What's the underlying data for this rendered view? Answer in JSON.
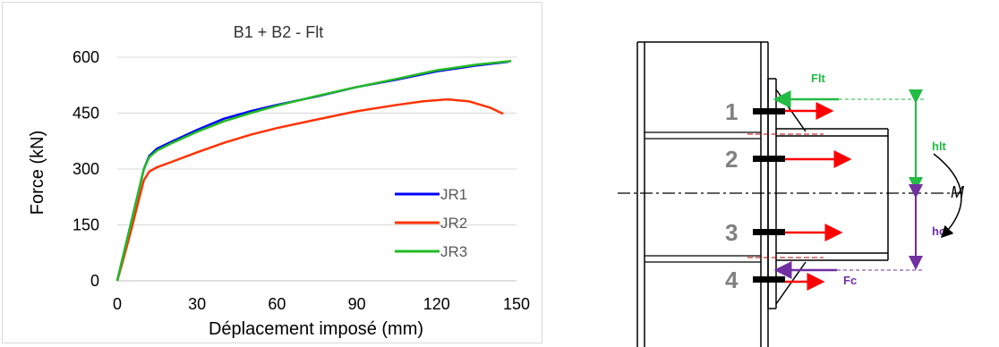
{
  "chart_data": {
    "type": "line",
    "title": "B1 + B2 - Flt",
    "xlabel": "Déplacement imposé (mm)",
    "ylabel": "Force (kN)",
    "xlim": [
      0,
      150
    ],
    "ylim": [
      0,
      600
    ],
    "xticks": [
      "0",
      "30",
      "60",
      "90",
      "120",
      "150"
    ],
    "yticks": [
      "0",
      "150",
      "300",
      "450",
      "600"
    ],
    "grid": "horizontal",
    "legend_position": "bottom-right",
    "series": [
      {
        "name": "JR1",
        "color": "#0000ff",
        "points": [
          [
            0,
            0
          ],
          [
            2,
            60
          ],
          [
            5,
            150
          ],
          [
            8,
            240
          ],
          [
            10,
            300
          ],
          [
            12,
            335
          ],
          [
            15,
            355
          ],
          [
            20,
            372
          ],
          [
            30,
            405
          ],
          [
            40,
            435
          ],
          [
            50,
            455
          ],
          [
            60,
            472
          ],
          [
            75,
            495
          ],
          [
            90,
            520
          ],
          [
            105,
            540
          ],
          [
            120,
            562
          ],
          [
            135,
            578
          ],
          [
            147,
            588
          ]
        ]
      },
      {
        "name": "JR2",
        "color": "#ff3300",
        "points": [
          [
            0,
            0
          ],
          [
            2,
            50
          ],
          [
            5,
            130
          ],
          [
            8,
            215
          ],
          [
            10,
            270
          ],
          [
            12,
            293
          ],
          [
            15,
            305
          ],
          [
            20,
            318
          ],
          [
            30,
            345
          ],
          [
            40,
            370
          ],
          [
            50,
            392
          ],
          [
            60,
            410
          ],
          [
            75,
            433
          ],
          [
            90,
            455
          ],
          [
            105,
            472
          ],
          [
            115,
            482
          ],
          [
            124,
            487
          ],
          [
            132,
            482
          ],
          [
            140,
            465
          ],
          [
            145,
            448
          ]
        ]
      },
      {
        "name": "JR3",
        "color": "#22bb22",
        "points": [
          [
            0,
            0
          ],
          [
            2,
            60
          ],
          [
            5,
            150
          ],
          [
            8,
            240
          ],
          [
            10,
            300
          ],
          [
            12,
            332
          ],
          [
            15,
            350
          ],
          [
            20,
            368
          ],
          [
            30,
            400
          ],
          [
            40,
            428
          ],
          [
            50,
            450
          ],
          [
            60,
            470
          ],
          [
            75,
            496
          ],
          [
            90,
            520
          ],
          [
            105,
            542
          ],
          [
            120,
            565
          ],
          [
            135,
            580
          ],
          [
            148,
            590
          ]
        ]
      }
    ]
  },
  "diagram": {
    "bolts": [
      "1",
      "2",
      "3",
      "4"
    ],
    "flt_label": "Flt",
    "hlt_label": "hlt",
    "hc_label": "hc",
    "fc_label": "Fc",
    "moment_label": "M",
    "colors": {
      "green": "#22bb44",
      "purple": "#7030a0",
      "red": "#ff0000",
      "bolt_text": "#808080"
    }
  }
}
